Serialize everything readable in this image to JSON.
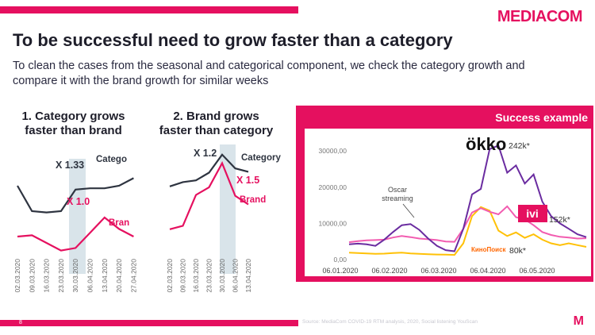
{
  "brand_logo": "MEDIACOM",
  "title": "To be successful need to grow faster than a category",
  "subtitle": "To clean the cases from the seasonal and categorical component, we check the category growth and compare it with the brand growth for similar weeks",
  "colors": {
    "accent": "#e5105f",
    "category_line": "#2e3440",
    "highlight_band": "#d9e4ea",
    "okko": "#6a2ca0",
    "ivi": "#f25cb0",
    "kinopoisk": "#ffc107"
  },
  "panel1": {
    "heading": "1. Category grows faster than brand",
    "category_label": "Catego",
    "brand_label": "Bran",
    "category_multiplier": "X 1.33",
    "brand_multiplier": "X 1.0",
    "dates": [
      "02.03.2020",
      "09.03.2020",
      "16.03.2020",
      "23.03.2020",
      "30.03.2020",
      "06.04.2020",
      "13.04.2020",
      "20.04.2020",
      "27.04.2020"
    ]
  },
  "panel2": {
    "heading": "2. Brand grows faster than category",
    "category_label": "Category",
    "brand_label": "Brand",
    "category_multiplier": "X 1.2",
    "brand_multiplier": "X 1.5",
    "dates": [
      "02.03.2020",
      "09.03.2020",
      "16.03.2020",
      "23.03.2020",
      "30.03.2020",
      "06.04.2020",
      "13.04.2020"
    ]
  },
  "success": {
    "title": "Success example",
    "annotation": [
      "Oscar",
      "streaming"
    ],
    "brands": [
      {
        "name": "ökko",
        "value": "242k*"
      },
      {
        "name": "ivi",
        "value": "152k*"
      },
      {
        "name": "КиноПоиск",
        "value": "80k*"
      }
    ]
  },
  "chart_data": [
    {
      "type": "line",
      "title": "1. Category grows faster than brand",
      "categories": [
        "02.03.2020",
        "09.03.2020",
        "16.03.2020",
        "23.03.2020",
        "30.03.2020",
        "06.04.2020",
        "13.04.2020",
        "20.04.2020",
        "27.04.2020"
      ],
      "series": [
        {
          "name": "Category",
          "values": [
            100,
            80,
            79,
            80,
            97,
            98,
            98,
            100,
            106
          ]
        },
        {
          "name": "Brand",
          "values": [
            60,
            61,
            55,
            49,
            51,
            63,
            75,
            66,
            60
          ]
        }
      ],
      "annotations": [
        "X 1.33",
        "X 1.0"
      ],
      "grid": false
    },
    {
      "type": "line",
      "title": "2. Brand grows faster than category",
      "categories": [
        "02.03.2020",
        "09.03.2020",
        "16.03.2020",
        "23.03.2020",
        "30.03.2020",
        "06.04.2020",
        "13.04.2020"
      ],
      "series": [
        {
          "name": "Category",
          "values": [
            85,
            90,
            92,
            101,
            122,
            106,
            102
          ]
        },
        {
          "name": "Brand",
          "values": [
            35,
            39,
            75,
            84,
            112,
            74,
            64
          ]
        }
      ],
      "annotations": [
        "X 1.2",
        "X 1.5"
      ],
      "grid": false
    },
    {
      "type": "line",
      "title": "Success example",
      "y_ticks": [
        "30000,00",
        "20000,00",
        "10000,00",
        "0,00"
      ],
      "ylim": [
        0,
        32000
      ],
      "x_ticks": [
        "06.01.2020",
        "06.02.2020",
        "06.03.2020",
        "06.04.2020",
        "06.05.2020"
      ],
      "series": [
        {
          "name": "ökko",
          "values": [
            4200,
            4400,
            4200,
            3800,
            5500,
            7600,
            9500,
            9800,
            8200,
            5800,
            3800,
            2600,
            2300,
            8500,
            18000,
            19500,
            30500,
            31500,
            24000,
            26000,
            21000,
            23500,
            16000,
            12000,
            10000,
            8500,
            7000,
            6200
          ]
        },
        {
          "name": "ivi",
          "values": [
            4800,
            5100,
            5300,
            5400,
            5500,
            6100,
            6500,
            6200,
            5800,
            5600,
            5400,
            5000,
            4900,
            8500,
            13000,
            14200,
            13200,
            12500,
            14700,
            11700,
            11100,
            9500,
            7600,
            6800,
            6300,
            6100,
            5800,
            5900
          ]
        },
        {
          "name": "КиноПоиск",
          "values": [
            1900,
            1800,
            1700,
            1600,
            1650,
            1800,
            1900,
            1700,
            1600,
            1500,
            1400,
            1350,
            1300,
            4500,
            12000,
            14500,
            13500,
            8000,
            6500,
            7500,
            6000,
            7000,
            5500,
            4500,
            4000,
            4500,
            4000,
            3500
          ]
        }
      ],
      "grid": false
    }
  ]
}
